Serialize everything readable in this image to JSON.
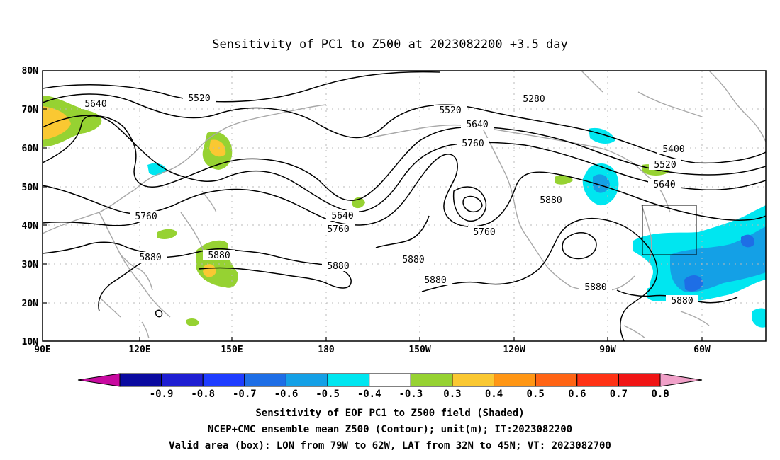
{
  "title": "Sensitivity of PC1 to Z500 at 2023082200 +3.5 day",
  "lat_labels": [
    "80N",
    "70N",
    "60N",
    "50N",
    "40N",
    "30N",
    "20N",
    "10N"
  ],
  "lon_labels": [
    "90E",
    "120E",
    "150E",
    "180",
    "150W",
    "120W",
    "90W",
    "60W"
  ],
  "contour_labels": [
    "5640",
    "5520",
    "5520",
    "5280",
    "5640",
    "5760",
    "5400",
    "5520",
    "5640",
    "5760",
    "5640",
    "5760",
    "5880",
    "5760",
    "5880",
    "5880",
    "5880",
    "5880",
    "5880",
    "5880"
  ],
  "colorbar": {
    "labels": [
      "-0.9",
      "-0.8",
      "-0.7",
      "-0.6",
      "-0.5",
      "-0.4",
      "-0.3",
      "0.3",
      "0.4",
      "0.5",
      "0.6",
      "0.7",
      "0.8",
      "0.9"
    ],
    "colors": [
      "#0a0aa0",
      "#1e1ed2",
      "#1e3cff",
      "#1e6ee6",
      "#14a0e6",
      "#00e6f0",
      "#ffffff",
      "#96d232",
      "#fac832",
      "#ff9614",
      "#ff6414",
      "#ff3214",
      "#f01414"
    ],
    "low_color": "#c80aa0",
    "high_color": "#f0a0c8"
  },
  "caption": [
    "Sensitivity of EOF PC1 to Z500 field (Shaded)",
    "NCEP+CMC ensemble mean Z500 (Contour); unit(m); IT:2023082200",
    "Valid area (box): LON from 79W to 62W, LAT from 32N to 45N; VT: 2023082700"
  ]
}
